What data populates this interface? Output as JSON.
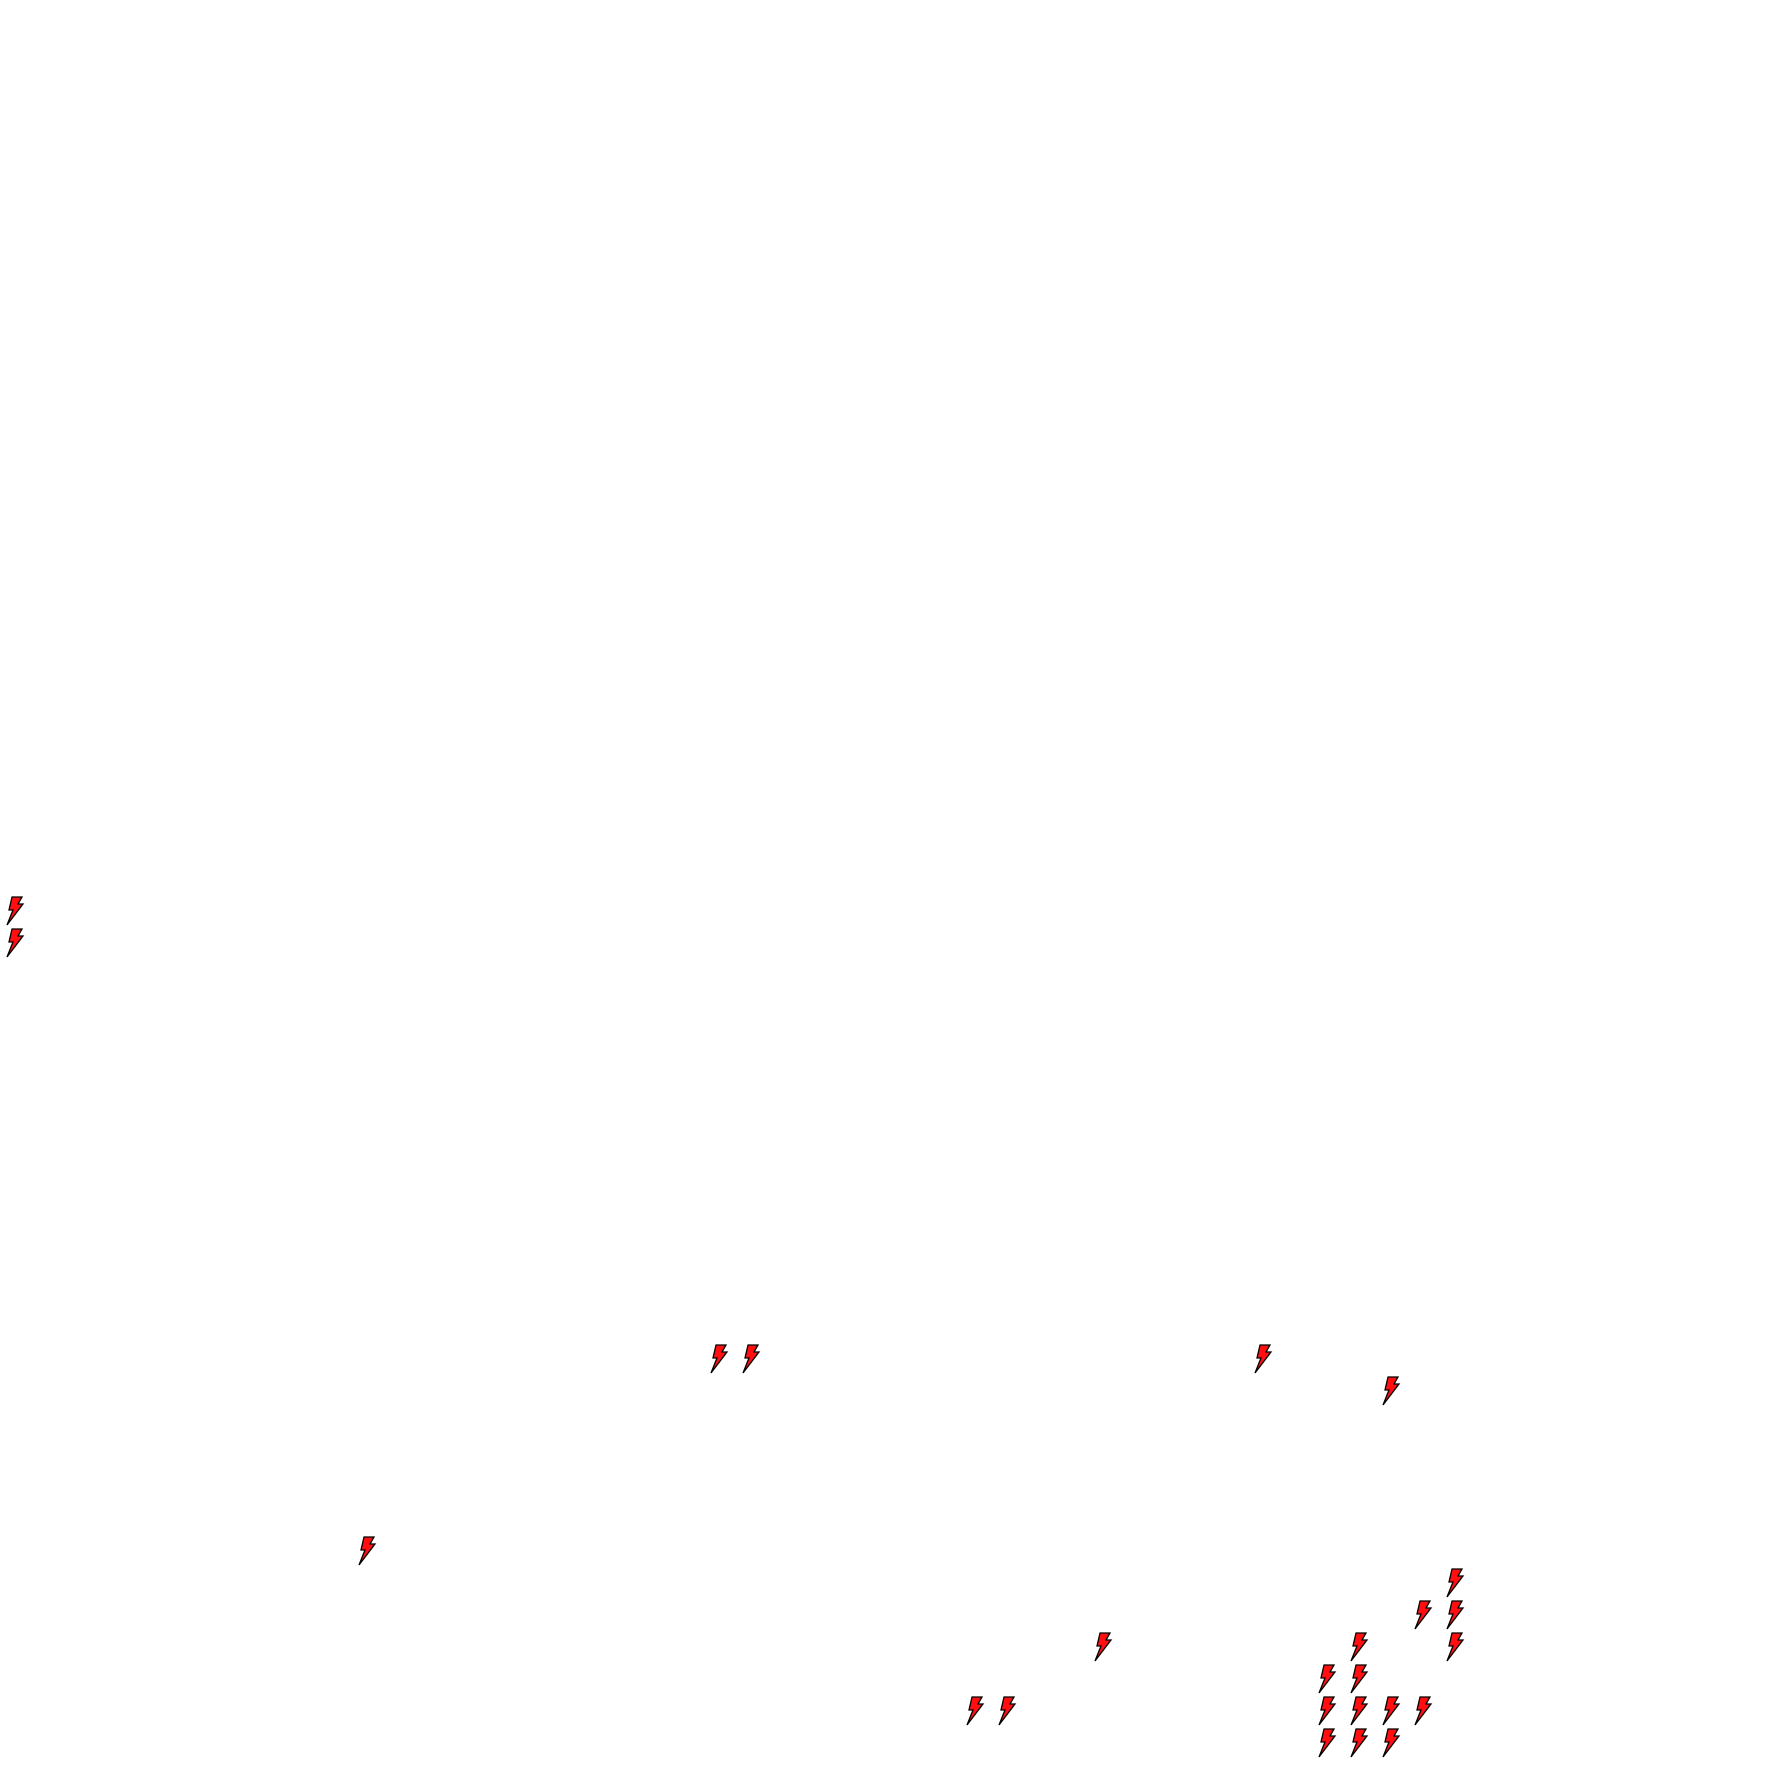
{
  "icon": {
    "name": "lightning-bolt",
    "fill": "#ff1010",
    "stroke": "#000000"
  }
}
